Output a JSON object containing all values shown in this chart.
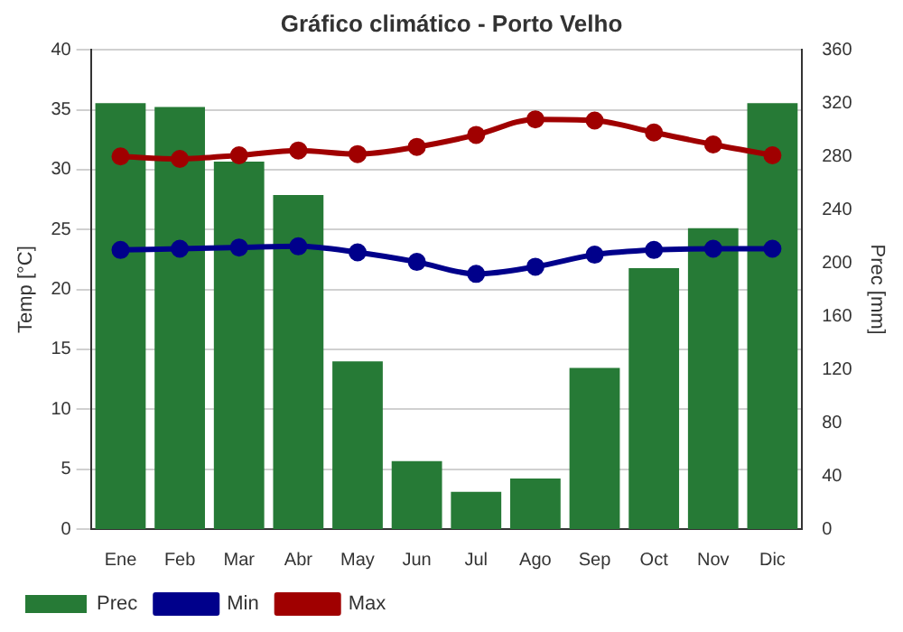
{
  "chart_data": {
    "type": "bar",
    "title": "Gráfico climático - Porto Velho",
    "ylabel": "Temp [°C]",
    "y2label": "Prec [mm]",
    "categories": [
      "Ene",
      "Feb",
      "Mar",
      "Abr",
      "May",
      "Jun",
      "Jul",
      "Ago",
      "Sep",
      "Oct",
      "Nov",
      "Dic"
    ],
    "series": [
      {
        "name": "Prec",
        "axis": "y2",
        "color": "#267a36",
        "values": [
          320,
          317,
          276,
          251,
          126,
          51,
          28,
          38,
          121,
          196,
          226,
          320
        ]
      },
      {
        "name": "Min",
        "type": "line",
        "color": "#00008b",
        "values": [
          23.3,
          23.4,
          23.5,
          23.6,
          23.1,
          22.3,
          21.3,
          21.9,
          22.9,
          23.3,
          23.4,
          23.4
        ]
      },
      {
        "name": "Max",
        "type": "line",
        "color": "#a00000",
        "values": [
          31.1,
          30.9,
          31.2,
          31.6,
          31.3,
          31.9,
          32.9,
          34.2,
          34.1,
          33.1,
          32.1,
          31.2
        ]
      }
    ],
    "ylim": [
      0,
      40
    ],
    "yticks": [
      0,
      5,
      10,
      15,
      20,
      25,
      30,
      35,
      40
    ],
    "y2lim": [
      0,
      360
    ],
    "y2ticks": [
      0,
      40,
      80,
      120,
      160,
      200,
      240,
      280,
      320,
      360
    ],
    "grid": "y",
    "legend": "bottom left",
    "marker": "circle",
    "line_style": "solid"
  }
}
